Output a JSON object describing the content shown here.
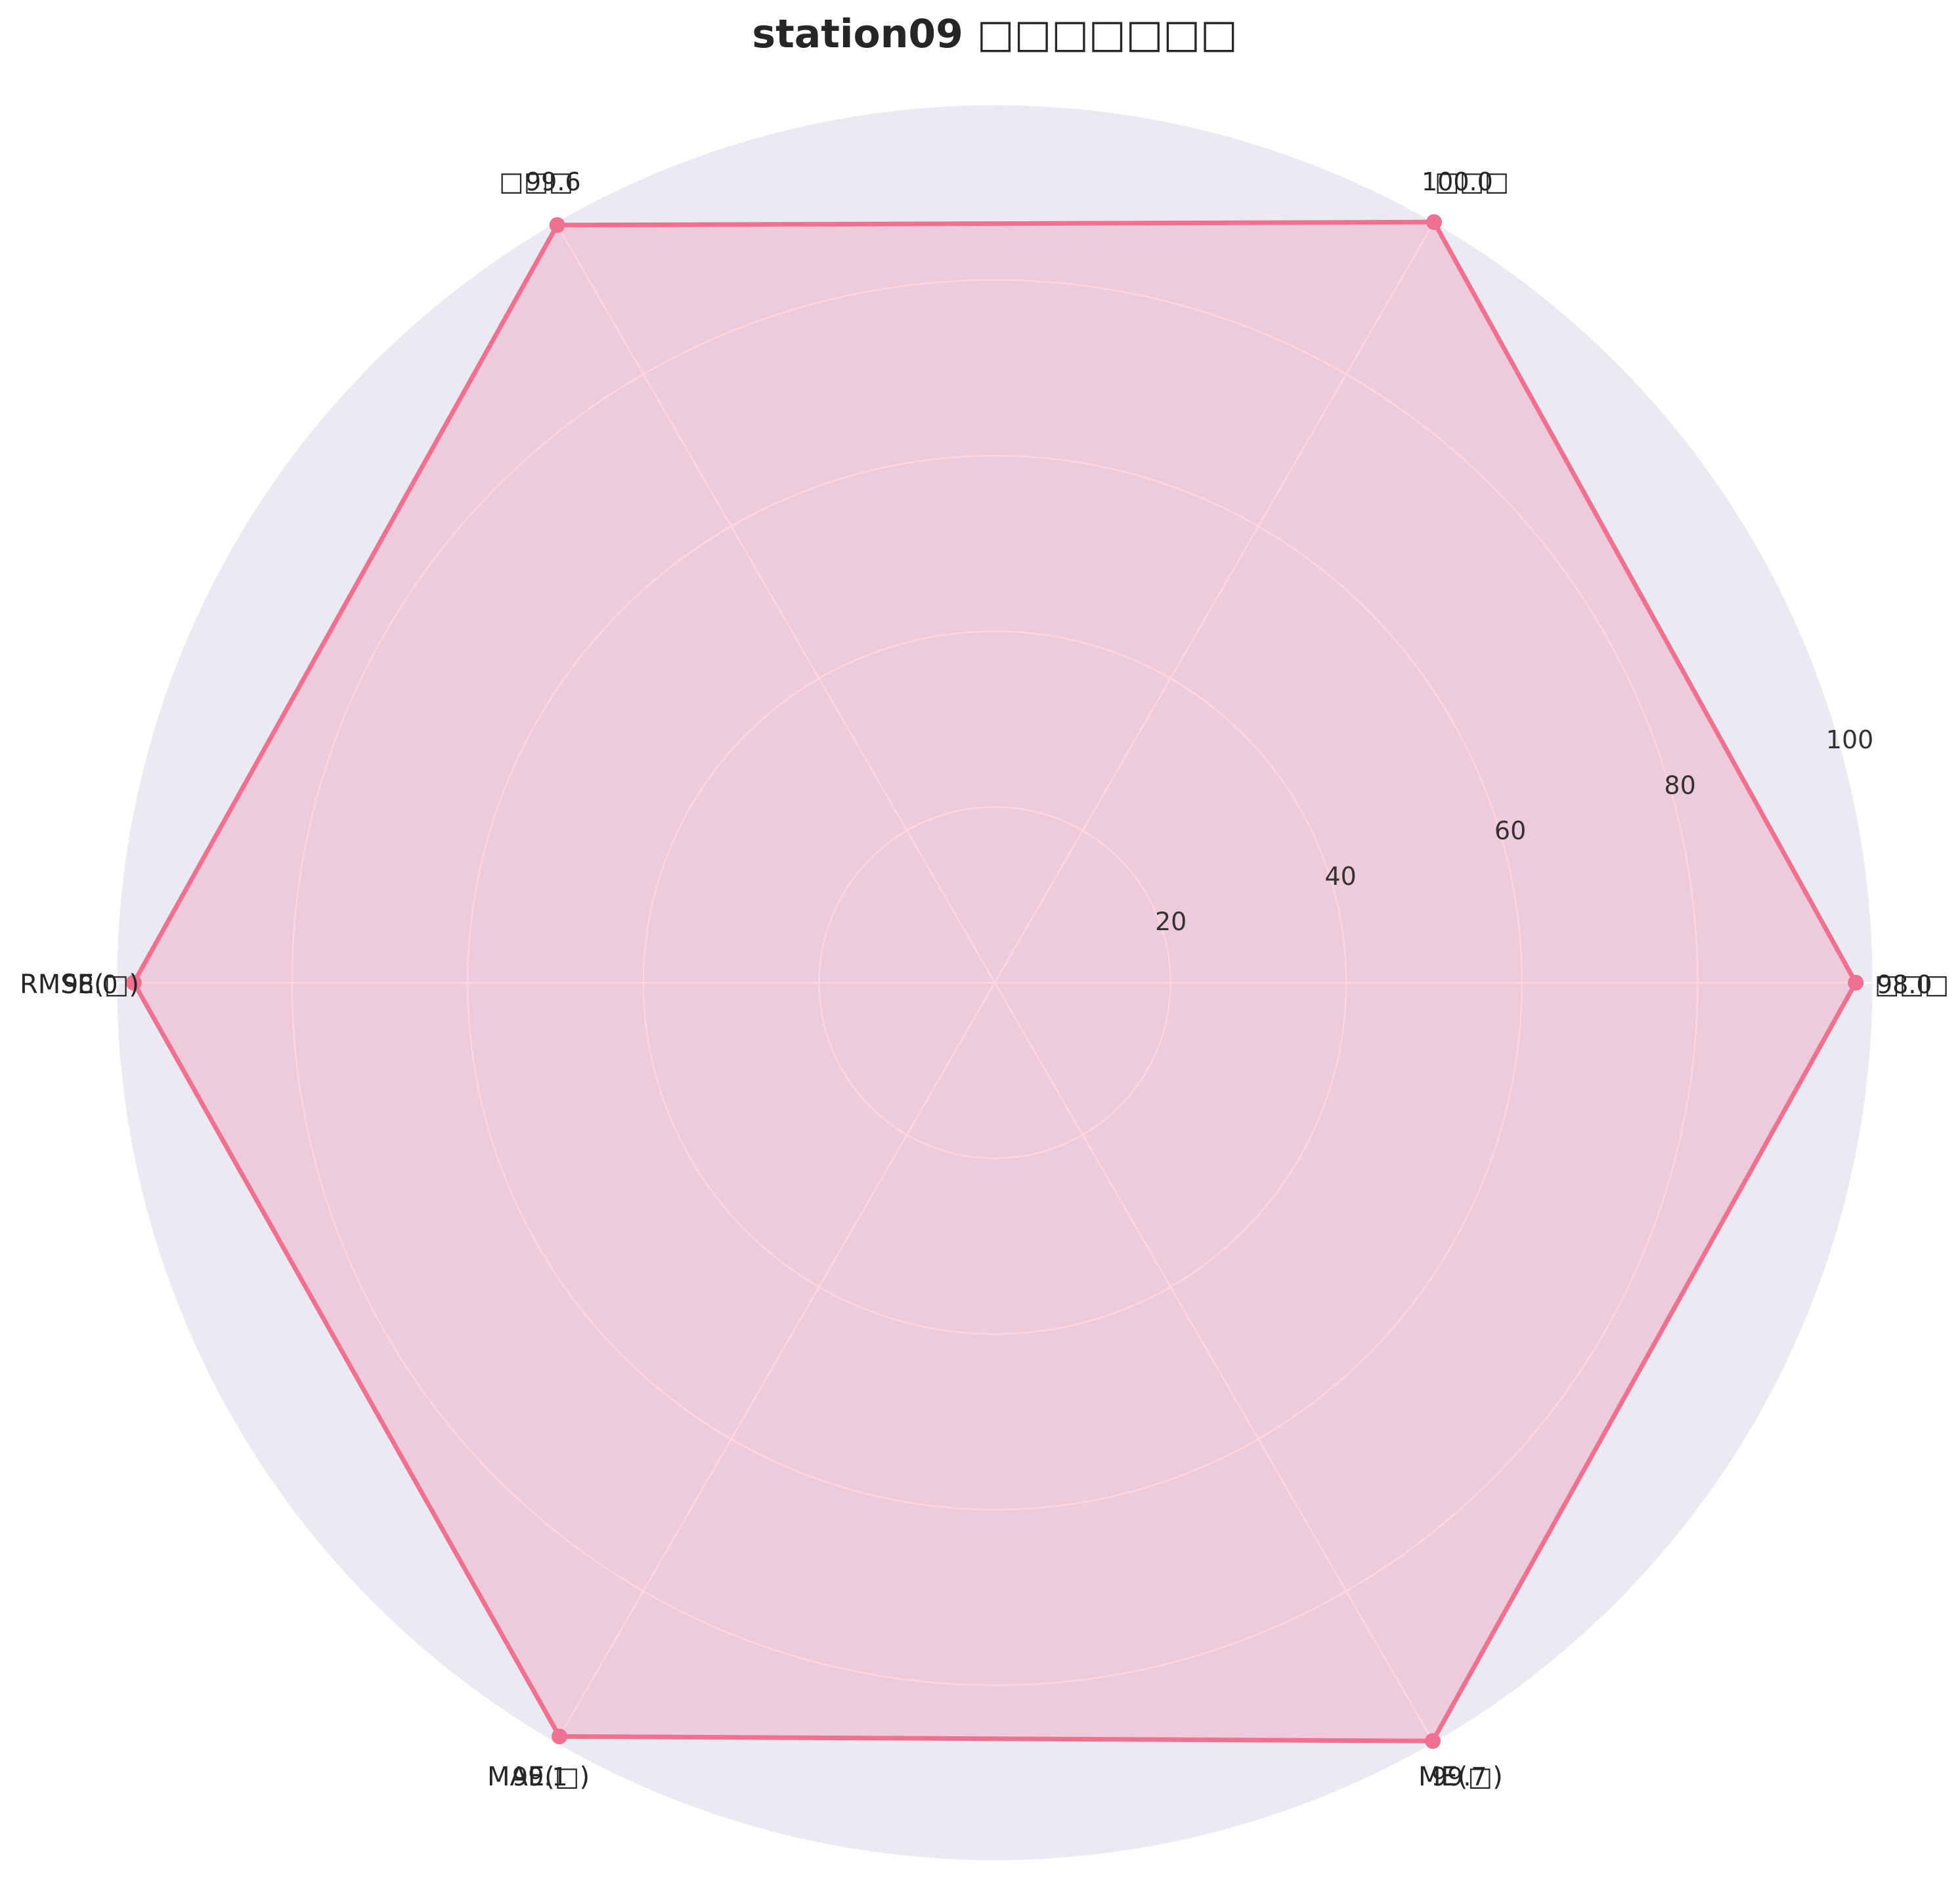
{
  "chart_data": {
    "type": "radar",
    "title": "station09 □□□□□□□",
    "axes": [
      "□□□",
      "□□□",
      "RMSE(□)",
      "MAE(□)",
      "ME(□)",
      "□□□"
    ],
    "values": [
      100.0,
      99.6,
      98.0,
      99.1,
      99.7,
      98.0
    ],
    "value_labels": [
      "100.0",
      "99.6",
      "98.0",
      "99.1",
      "99.7",
      "98.0"
    ],
    "rlim": [
      0,
      100
    ],
    "rticks": [
      20,
      40,
      60,
      80,
      100
    ],
    "rtick_labels": [
      "20",
      "40",
      "60",
      "80",
      "100"
    ],
    "grid": true,
    "legend": "none",
    "colors": {
      "line": "#f07090",
      "fill": "#f4a6bc",
      "background": "#eaeaf2",
      "grid": "#ffffff"
    }
  }
}
